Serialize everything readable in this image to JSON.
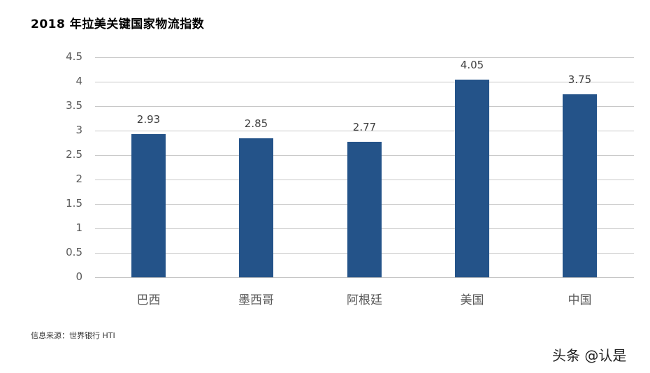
{
  "title": "2018 年拉美关键国家物流指数",
  "source": "信息来源：世界银行 HTI",
  "watermark": "头条 @认是",
  "colors": {
    "bar": "#245389",
    "grid": "#c8c8c8"
  },
  "chart_data": {
    "type": "bar",
    "title": "2018 年拉美关键国家物流指数",
    "categories": [
      "巴西",
      "墨西哥",
      "阿根廷",
      "美国",
      "中国"
    ],
    "values": [
      2.93,
      2.85,
      2.77,
      4.05,
      3.75
    ],
    "value_labels": [
      "2.93",
      "2.85",
      "2.77",
      "4.05",
      "3.75"
    ],
    "xlabel": "",
    "ylabel": "",
    "ylim": [
      0,
      4.5
    ],
    "yticks": [
      "0",
      "0.5",
      "1",
      "1.5",
      "2",
      "2.5",
      "3",
      "3.5",
      "4",
      "4.5"
    ],
    "grid": true,
    "legend": "none"
  }
}
